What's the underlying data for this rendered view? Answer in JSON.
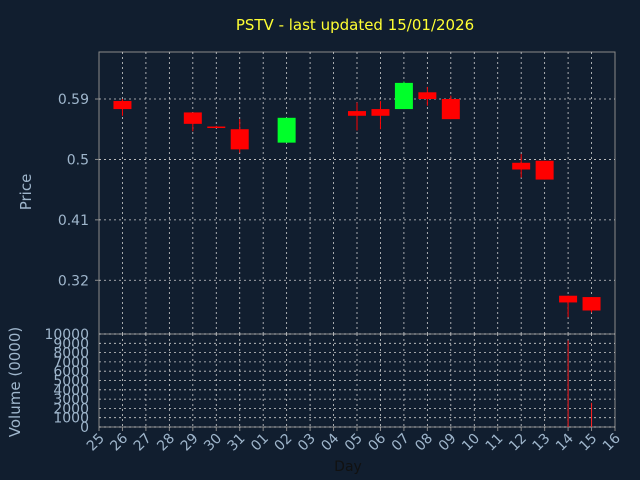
{
  "colors": {
    "background": "#111e2f",
    "title": "#ffff33",
    "axis_text": "#9fb6cc",
    "axis_line": "#8a8a8a",
    "grid": "#cfcfcf",
    "up": "#00ff2a",
    "down": "#ff0000",
    "volume": "#ff2020"
  },
  "chart_data": {
    "type": "candlestick",
    "title": "PSTV - last updated 15/01/2026",
    "price_ylabel": "Price",
    "volume_ylabel": "Volume (0000)",
    "xlabel": "Day",
    "x_ticks": [
      "25",
      "26",
      "27",
      "28",
      "29",
      "30",
      "31",
      "01",
      "02",
      "03",
      "04",
      "05",
      "06",
      "07",
      "08",
      "09",
      "10",
      "11",
      "12",
      "13",
      "14",
      "15",
      "16"
    ],
    "price_yticks": [
      "0.59",
      "0.5",
      "0.41",
      "0.32"
    ],
    "price_ylim": [
      0.24,
      0.66
    ],
    "volume_yticks": [
      "10000",
      "9000",
      "8000",
      "7000",
      "6000",
      "5000",
      "4000",
      "3000",
      "2000",
      "1000",
      "0"
    ],
    "volume_ylim": [
      0,
      10000
    ],
    "grid": true,
    "candles": [
      {
        "day": "26",
        "open": 0.587,
        "close": 0.575,
        "high": 0.59,
        "low": 0.565,
        "volume": 0
      },
      {
        "day": "29",
        "open": 0.57,
        "close": 0.553,
        "high": 0.57,
        "low": 0.542,
        "volume": 0
      },
      {
        "day": "30",
        "open": 0.549,
        "close": 0.548,
        "high": 0.55,
        "low": 0.547,
        "volume": 0
      },
      {
        "day": "31",
        "open": 0.545,
        "close": 0.515,
        "high": 0.56,
        "low": 0.51,
        "volume": 0
      },
      {
        "day": "02",
        "open": 0.525,
        "close": 0.562,
        "high": 0.562,
        "low": 0.525,
        "volume": 0
      },
      {
        "day": "05",
        "open": 0.572,
        "close": 0.565,
        "high": 0.585,
        "low": 0.543,
        "volume": 0
      },
      {
        "day": "06",
        "open": 0.575,
        "close": 0.565,
        "high": 0.587,
        "low": 0.545,
        "volume": 0
      },
      {
        "day": "07",
        "open": 0.575,
        "close": 0.614,
        "high": 0.616,
        "low": 0.575,
        "volume": 0
      },
      {
        "day": "08",
        "open": 0.6,
        "close": 0.59,
        "high": 0.608,
        "low": 0.58,
        "volume": 0
      },
      {
        "day": "09",
        "open": 0.59,
        "close": 0.56,
        "high": 0.595,
        "low": 0.56,
        "volume": 0
      },
      {
        "day": "12",
        "open": 0.495,
        "close": 0.485,
        "high": 0.508,
        "low": 0.473,
        "volume": 0
      },
      {
        "day": "13",
        "open": 0.498,
        "close": 0.47,
        "high": 0.498,
        "low": 0.47,
        "volume": 0
      },
      {
        "day": "14",
        "open": 0.297,
        "close": 0.287,
        "high": 0.297,
        "low": 0.265,
        "volume": 9300
      },
      {
        "day": "15",
        "open": 0.295,
        "close": 0.275,
        "high": 0.295,
        "low": 0.272,
        "volume": 2600
      }
    ]
  }
}
